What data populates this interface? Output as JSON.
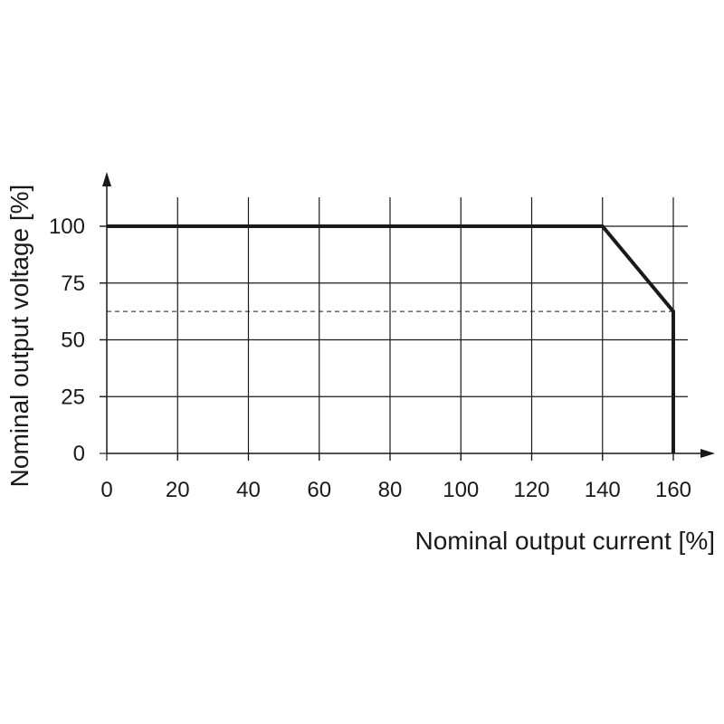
{
  "chart_data": {
    "type": "line",
    "xlabel": "Nominal output current [%]",
    "ylabel": "Nominal output voltage [%]",
    "x_ticks": [
      0,
      20,
      40,
      60,
      80,
      100,
      120,
      140,
      160
    ],
    "y_ticks": [
      0,
      25,
      50,
      75,
      100
    ],
    "xlim": [
      0,
      170
    ],
    "ylim": [
      0,
      115
    ],
    "grid": true,
    "series": [
      {
        "x": [
          0,
          140,
          160,
          160
        ],
        "y": [
          100,
          100,
          62.5,
          0
        ]
      }
    ],
    "reference_lines": [
      {
        "orientation": "horizontal",
        "y": 62.5,
        "x_range": [
          0,
          160
        ],
        "style": "dashed"
      }
    ]
  }
}
